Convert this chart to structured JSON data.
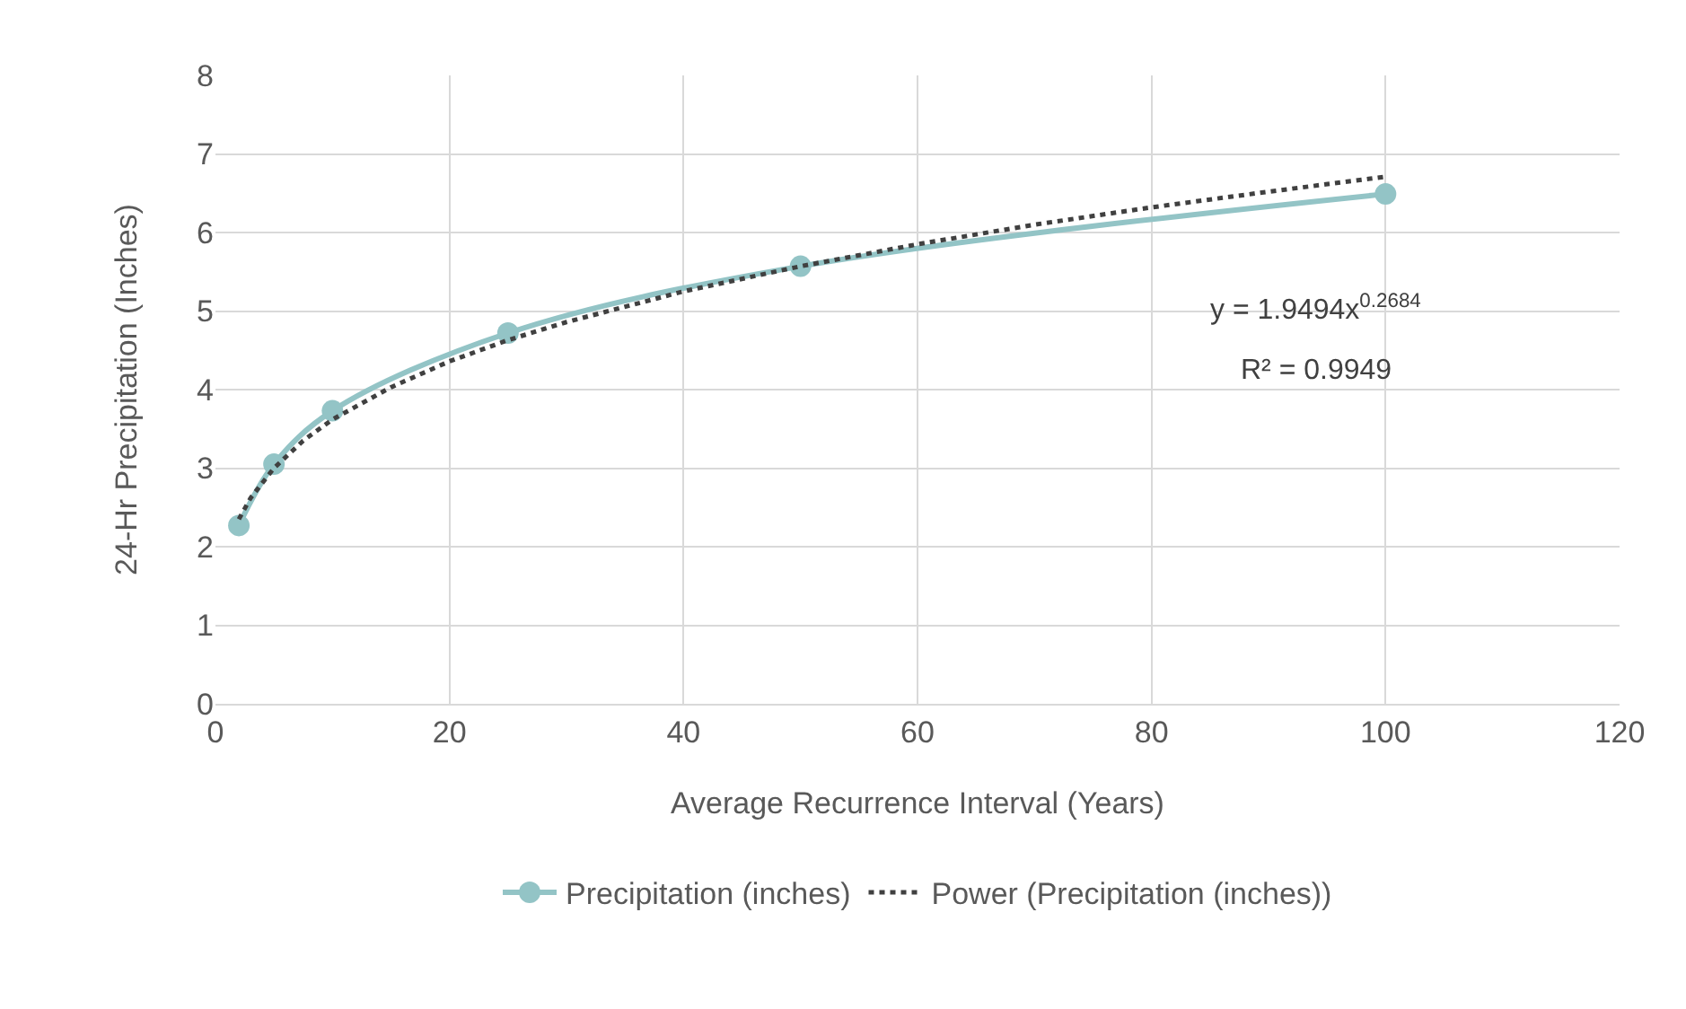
{
  "chart_data": {
    "type": "line",
    "xlabel": "Average Recurrence Interval (Years)",
    "ylabel": "24-Hr Precipitation (Inches)",
    "xlim": [
      0,
      120
    ],
    "xticks": [
      0,
      20,
      40,
      60,
      80,
      100,
      120
    ],
    "ylim": [
      0,
      8
    ],
    "yticks": [
      0,
      1,
      2,
      3,
      4,
      5,
      6,
      7,
      8
    ],
    "grid": true,
    "legend": "bottom",
    "series": [
      {
        "name": "Precipitation (inches)",
        "color": "#93c4c6",
        "x": [
          2,
          5,
          10,
          25,
          50,
          100
        ],
        "values": [
          2.27,
          3.05,
          3.73,
          4.72,
          5.57,
          6.49
        ],
        "marker": "circle",
        "line_style": "solid"
      },
      {
        "name": "Power (Precipitation (inches))",
        "color": "#404040",
        "x": [
          2,
          3,
          5,
          7.5,
          10,
          15,
          20,
          25,
          30,
          40,
          50,
          60,
          70,
          80,
          90,
          100
        ],
        "values": [
          2.35,
          2.62,
          3.0,
          3.35,
          3.62,
          4.03,
          4.36,
          4.63,
          4.86,
          5.25,
          5.57,
          5.85,
          6.1,
          6.32,
          6.52,
          6.71
        ],
        "marker": "none",
        "line_style": "dotted"
      }
    ],
    "annotations": [
      "y = 1.9494x$^{0.2684}$",
      "R² = 0.9949"
    ]
  }
}
